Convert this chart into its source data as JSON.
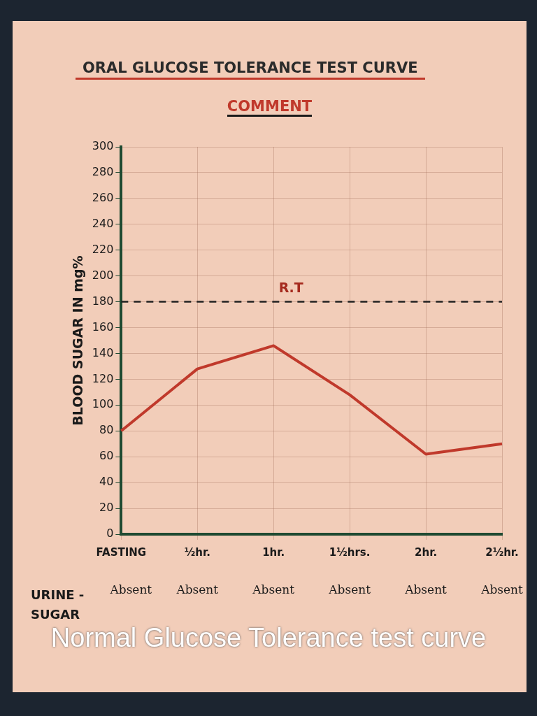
{
  "chart_data": {
    "type": "line",
    "title": "ORAL GLUCOSE TOLERANCE TEST CURVE",
    "subtitle": "COMMENT",
    "ylabel": "BLOOD SUGAR IN mg%",
    "categories": [
      "FASTING",
      "½hr.",
      "1hr.",
      "1½hrs.",
      "2hr.",
      "2½hr."
    ],
    "series": [
      {
        "color": "#c0392b",
        "values": [
          80,
          128,
          146,
          108,
          62,
          70
        ]
      }
    ],
    "ylim": [
      0,
      300
    ],
    "yticks": [
      0,
      20,
      40,
      60,
      80,
      100,
      120,
      140,
      160,
      180,
      200,
      220,
      240,
      260,
      280,
      300
    ],
    "ref_lines": [
      {
        "axis": "y",
        "value": 180,
        "label": "R.T",
        "color": "#222222",
        "line_style": "dashed"
      }
    ],
    "annotations": [
      "URINE - SUGAR",
      "Absent",
      "Absent",
      "Absent",
      "Absent",
      "Absent",
      "Absent",
      "Normal Glucose Tolerance test curve"
    ],
    "grid": true,
    "legend": false,
    "marker": "none",
    "line_style": "solid"
  }
}
